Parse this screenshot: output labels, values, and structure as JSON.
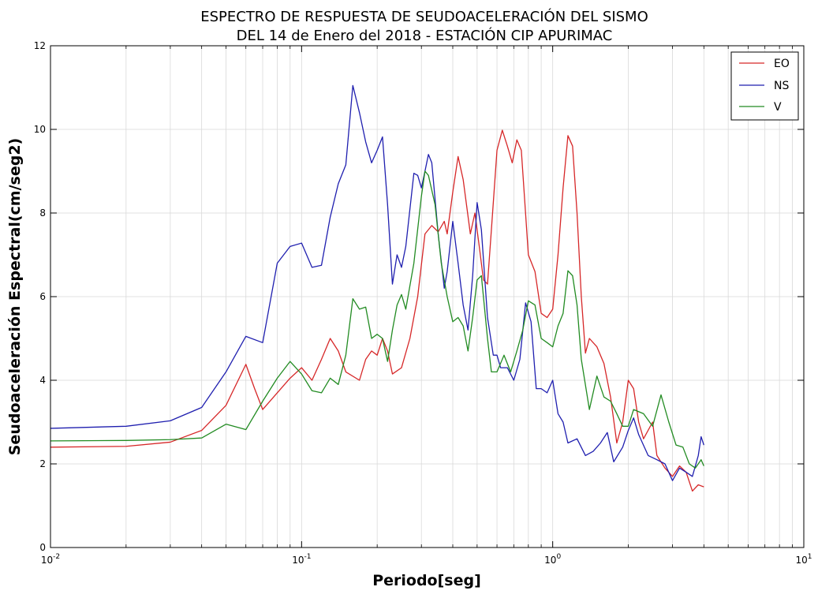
{
  "chart_data": {
    "type": "line",
    "title_lines": [
      "ESPECTRO DE RESPUESTA DE SEUDOACELERACIÓN DEL SISMO",
      "DEL 14 de Enero del 2018 - ESTACIÓN CIP APURIMAC"
    ],
    "xlabel": "Periodo[seg]",
    "ylabel": "Seudoaceleración Espectral(cm/seg2)",
    "x_scale": "log",
    "xlim": [
      0.01,
      10
    ],
    "ylim": [
      0,
      12
    ],
    "y_ticks": [
      "0",
      "2",
      "4",
      "6",
      "8",
      "10",
      "12"
    ],
    "x_ticks": [
      {
        "value": 0.01,
        "base": "10",
        "exp": "-2"
      },
      {
        "value": 0.1,
        "base": "10",
        "exp": "-1"
      },
      {
        "value": 1,
        "base": "10",
        "exp": "0"
      },
      {
        "value": 10,
        "base": "10",
        "exp": "1"
      }
    ],
    "grid": true,
    "legend_position": "top-right",
    "series": [
      {
        "name": "EO",
        "color": "#d62728",
        "points": [
          [
            0.01,
            2.4
          ],
          [
            0.02,
            2.42
          ],
          [
            0.03,
            2.52
          ],
          [
            0.04,
            2.8
          ],
          [
            0.05,
            3.4
          ],
          [
            0.06,
            4.38
          ],
          [
            0.065,
            3.8
          ],
          [
            0.07,
            3.3
          ],
          [
            0.08,
            3.7
          ],
          [
            0.09,
            4.05
          ],
          [
            0.1,
            4.3
          ],
          [
            0.11,
            4.0
          ],
          [
            0.12,
            4.5
          ],
          [
            0.13,
            5.0
          ],
          [
            0.14,
            4.7
          ],
          [
            0.15,
            4.2
          ],
          [
            0.17,
            4.0
          ],
          [
            0.18,
            4.5
          ],
          [
            0.19,
            4.7
          ],
          [
            0.2,
            4.6
          ],
          [
            0.21,
            5.0
          ],
          [
            0.22,
            4.7
          ],
          [
            0.23,
            4.15
          ],
          [
            0.25,
            4.3
          ],
          [
            0.27,
            5.0
          ],
          [
            0.29,
            6.0
          ],
          [
            0.31,
            7.5
          ],
          [
            0.33,
            7.7
          ],
          [
            0.35,
            7.55
          ],
          [
            0.37,
            7.8
          ],
          [
            0.38,
            7.5
          ],
          [
            0.4,
            8.5
          ],
          [
            0.42,
            9.35
          ],
          [
            0.44,
            8.8
          ],
          [
            0.47,
            7.5
          ],
          [
            0.49,
            8.0
          ],
          [
            0.51,
            7.2
          ],
          [
            0.53,
            6.4
          ],
          [
            0.55,
            6.3
          ],
          [
            0.57,
            7.6
          ],
          [
            0.6,
            9.5
          ],
          [
            0.63,
            9.98
          ],
          [
            0.66,
            9.6
          ],
          [
            0.69,
            9.2
          ],
          [
            0.72,
            9.75
          ],
          [
            0.75,
            9.5
          ],
          [
            0.8,
            7.0
          ],
          [
            0.85,
            6.6
          ],
          [
            0.9,
            5.6
          ],
          [
            0.95,
            5.5
          ],
          [
            1.0,
            5.7
          ],
          [
            1.05,
            7.0
          ],
          [
            1.1,
            8.6
          ],
          [
            1.15,
            9.85
          ],
          [
            1.2,
            9.6
          ],
          [
            1.25,
            8.0
          ],
          [
            1.3,
            6.0
          ],
          [
            1.35,
            4.65
          ],
          [
            1.4,
            5.0
          ],
          [
            1.5,
            4.8
          ],
          [
            1.6,
            4.4
          ],
          [
            1.7,
            3.6
          ],
          [
            1.8,
            2.5
          ],
          [
            1.9,
            3.0
          ],
          [
            2.0,
            4.0
          ],
          [
            2.1,
            3.8
          ],
          [
            2.2,
            3.0
          ],
          [
            2.3,
            2.6
          ],
          [
            2.5,
            3.0
          ],
          [
            2.6,
            2.2
          ],
          [
            2.8,
            1.9
          ],
          [
            3.0,
            1.7
          ],
          [
            3.2,
            1.95
          ],
          [
            3.4,
            1.8
          ],
          [
            3.6,
            1.35
          ],
          [
            3.8,
            1.5
          ],
          [
            4.0,
            1.45
          ]
        ]
      },
      {
        "name": "NS",
        "color": "#1f1faf",
        "points": [
          [
            0.01,
            2.85
          ],
          [
            0.02,
            2.9
          ],
          [
            0.03,
            3.03
          ],
          [
            0.04,
            3.35
          ],
          [
            0.05,
            4.2
          ],
          [
            0.06,
            5.05
          ],
          [
            0.07,
            4.9
          ],
          [
            0.08,
            6.8
          ],
          [
            0.09,
            7.2
          ],
          [
            0.1,
            7.28
          ],
          [
            0.11,
            6.7
          ],
          [
            0.12,
            6.75
          ],
          [
            0.13,
            7.9
          ],
          [
            0.14,
            8.7
          ],
          [
            0.15,
            9.15
          ],
          [
            0.16,
            11.05
          ],
          [
            0.17,
            10.4
          ],
          [
            0.18,
            9.7
          ],
          [
            0.19,
            9.2
          ],
          [
            0.2,
            9.5
          ],
          [
            0.21,
            9.82
          ],
          [
            0.22,
            8.2
          ],
          [
            0.23,
            6.3
          ],
          [
            0.24,
            7.0
          ],
          [
            0.25,
            6.7
          ],
          [
            0.26,
            7.2
          ],
          [
            0.28,
            8.95
          ],
          [
            0.29,
            8.9
          ],
          [
            0.3,
            8.6
          ],
          [
            0.31,
            9.0
          ],
          [
            0.32,
            9.4
          ],
          [
            0.33,
            9.2
          ],
          [
            0.35,
            7.5
          ],
          [
            0.37,
            6.2
          ],
          [
            0.38,
            6.6
          ],
          [
            0.4,
            7.8
          ],
          [
            0.42,
            6.8
          ],
          [
            0.44,
            5.8
          ],
          [
            0.46,
            5.2
          ],
          [
            0.48,
            6.5
          ],
          [
            0.5,
            8.25
          ],
          [
            0.52,
            7.6
          ],
          [
            0.55,
            5.5
          ],
          [
            0.58,
            4.6
          ],
          [
            0.6,
            4.6
          ],
          [
            0.62,
            4.3
          ],
          [
            0.66,
            4.3
          ],
          [
            0.7,
            4.0
          ],
          [
            0.74,
            4.5
          ],
          [
            0.78,
            5.85
          ],
          [
            0.82,
            5.4
          ],
          [
            0.86,
            3.8
          ],
          [
            0.9,
            3.8
          ],
          [
            0.95,
            3.7
          ],
          [
            1.0,
            4.0
          ],
          [
            1.05,
            3.2
          ],
          [
            1.1,
            3.0
          ],
          [
            1.15,
            2.5
          ],
          [
            1.25,
            2.6
          ],
          [
            1.35,
            2.2
          ],
          [
            1.45,
            2.3
          ],
          [
            1.55,
            2.5
          ],
          [
            1.65,
            2.75
          ],
          [
            1.75,
            2.05
          ],
          [
            1.9,
            2.4
          ],
          [
            2.0,
            2.8
          ],
          [
            2.1,
            3.1
          ],
          [
            2.2,
            2.7
          ],
          [
            2.4,
            2.2
          ],
          [
            2.6,
            2.1
          ],
          [
            2.8,
            2.0
          ],
          [
            3.0,
            1.6
          ],
          [
            3.2,
            1.9
          ],
          [
            3.4,
            1.8
          ],
          [
            3.6,
            1.7
          ],
          [
            3.8,
            2.2
          ],
          [
            3.9,
            2.65
          ],
          [
            4.0,
            2.45
          ]
        ]
      },
      {
        "name": "V",
        "color": "#228b22",
        "points": [
          [
            0.01,
            2.55
          ],
          [
            0.02,
            2.56
          ],
          [
            0.03,
            2.58
          ],
          [
            0.04,
            2.62
          ],
          [
            0.05,
            2.95
          ],
          [
            0.06,
            2.82
          ],
          [
            0.07,
            3.5
          ],
          [
            0.08,
            4.05
          ],
          [
            0.09,
            4.45
          ],
          [
            0.1,
            4.15
          ],
          [
            0.11,
            3.75
          ],
          [
            0.12,
            3.7
          ],
          [
            0.13,
            4.05
          ],
          [
            0.14,
            3.9
          ],
          [
            0.15,
            4.6
          ],
          [
            0.16,
            5.95
          ],
          [
            0.17,
            5.7
          ],
          [
            0.18,
            5.75
          ],
          [
            0.19,
            5.0
          ],
          [
            0.2,
            5.1
          ],
          [
            0.21,
            5.0
          ],
          [
            0.22,
            4.45
          ],
          [
            0.23,
            5.2
          ],
          [
            0.24,
            5.8
          ],
          [
            0.25,
            6.05
          ],
          [
            0.26,
            5.7
          ],
          [
            0.28,
            6.8
          ],
          [
            0.3,
            8.4
          ],
          [
            0.31,
            9.0
          ],
          [
            0.32,
            8.9
          ],
          [
            0.34,
            8.2
          ],
          [
            0.36,
            6.8
          ],
          [
            0.38,
            6.0
          ],
          [
            0.4,
            5.4
          ],
          [
            0.42,
            5.5
          ],
          [
            0.44,
            5.3
          ],
          [
            0.46,
            4.7
          ],
          [
            0.48,
            5.5
          ],
          [
            0.5,
            6.4
          ],
          [
            0.52,
            6.5
          ],
          [
            0.55,
            5.0
          ],
          [
            0.57,
            4.2
          ],
          [
            0.6,
            4.2
          ],
          [
            0.64,
            4.6
          ],
          [
            0.68,
            4.2
          ],
          [
            0.72,
            4.7
          ],
          [
            0.76,
            5.2
          ],
          [
            0.8,
            5.9
          ],
          [
            0.85,
            5.8
          ],
          [
            0.9,
            5.0
          ],
          [
            0.95,
            4.9
          ],
          [
            1.0,
            4.8
          ],
          [
            1.05,
            5.3
          ],
          [
            1.1,
            5.6
          ],
          [
            1.15,
            6.62
          ],
          [
            1.2,
            6.5
          ],
          [
            1.25,
            5.8
          ],
          [
            1.3,
            4.5
          ],
          [
            1.4,
            3.3
          ],
          [
            1.5,
            4.1
          ],
          [
            1.6,
            3.6
          ],
          [
            1.7,
            3.5
          ],
          [
            1.8,
            3.2
          ],
          [
            1.9,
            2.9
          ],
          [
            2.0,
            2.9
          ],
          [
            2.1,
            3.3
          ],
          [
            2.3,
            3.2
          ],
          [
            2.5,
            2.9
          ],
          [
            2.7,
            3.65
          ],
          [
            2.9,
            3.0
          ],
          [
            3.1,
            2.45
          ],
          [
            3.3,
            2.4
          ],
          [
            3.5,
            2.0
          ],
          [
            3.7,
            1.9
          ],
          [
            3.9,
            2.1
          ],
          [
            4.0,
            1.95
          ]
        ]
      }
    ]
  }
}
